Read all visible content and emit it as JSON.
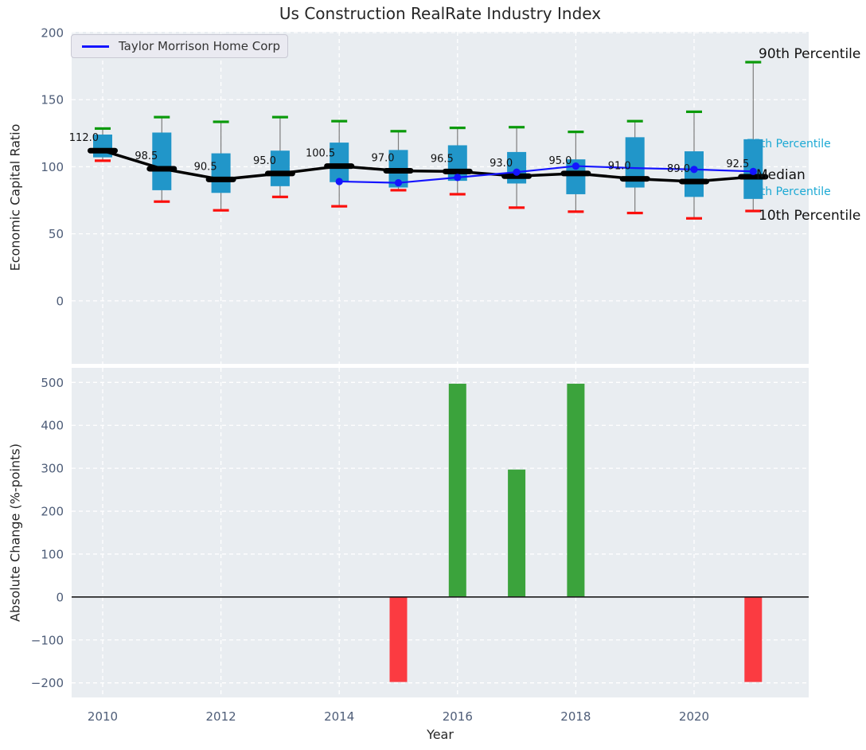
{
  "title": "Us Construction RealRate Industry Index",
  "colors": {
    "plot_background": "#e9edf1",
    "grid": "#ffffff",
    "box_fill": "#2196c9",
    "whisker": "#7d7d7d",
    "cap_90th": "#0a9a0a",
    "cap_10th": "#fb0f0c",
    "median": "#000000",
    "company_line": "#1414ff",
    "bar_positive": "#3ba33c",
    "bar_negative": "#fb3b41",
    "tick_label": "#4e5d78",
    "annotation_cyan": "#1ca9d4",
    "annotation_dark": "#111111",
    "zero_line": "#1a1a1a"
  },
  "top_chart": {
    "ylabel": "Economic Capital Ratio",
    "legend": {
      "label": "Taylor Morrison Home Corp"
    }
  },
  "bottom_chart": {
    "ylabel": "Absolute Change (%-points)",
    "xlabel": "Year"
  },
  "chart_data": [
    {
      "type": "boxplot",
      "title": "Us Construction RealRate Industry Index",
      "ylabel": "Economic Capital Ratio",
      "years": [
        2010,
        2011,
        2012,
        2013,
        2014,
        2015,
        2016,
        2017,
        2018,
        2019,
        2020,
        2021
      ],
      "percentiles": {
        "p10": [
          104.5,
          74.0,
          67.5,
          77.5,
          70.5,
          82.5,
          79.5,
          69.5,
          66.5,
          65.5,
          61.5,
          67.0
        ],
        "p25": [
          107.0,
          82.5,
          80.5,
          85.5,
          88.5,
          84.5,
          89.5,
          87.5,
          79.5,
          84.5,
          77.5,
          76.0
        ],
        "median": [
          112.0,
          98.5,
          90.5,
          95.0,
          100.5,
          97.0,
          96.5,
          93.0,
          95.0,
          91.0,
          89.0,
          92.5
        ],
        "p75": [
          124.0,
          125.5,
          110.0,
          112.0,
          118.0,
          112.5,
          116.0,
          111.0,
          105.5,
          122.0,
          111.5,
          120.5
        ],
        "p90": [
          128.5,
          137.0,
          133.5,
          137.0,
          134.0,
          126.5,
          129.0,
          129.5,
          126.0,
          134.0,
          141.0,
          178.0
        ]
      },
      "median_labels": [
        "112.0",
        "98.5",
        "90.5",
        "95.0",
        "100.5",
        "97.0",
        "96.5",
        "93.0",
        "95.0",
        "91.0",
        "89.0",
        "92.5"
      ],
      "company_line": {
        "name": "Taylor Morrison Home Corp",
        "years": [
          2014,
          2015,
          2016,
          2017,
          2018,
          2019,
          2020,
          2021
        ],
        "values": [
          89.0,
          88.0,
          92.0,
          96.0,
          100.5,
          99.0,
          98.0,
          96.5
        ],
        "marker_years": [
          2014,
          2015,
          2016,
          2017,
          2018,
          2020,
          2021
        ]
      },
      "annotations": [
        {
          "text": "90th Percentile",
          "style": "dark"
        },
        {
          "text": "75th Percentile",
          "style": "cyan"
        },
        {
          "text": "Median",
          "style": "dark"
        },
        {
          "text": "25th Percentile",
          "style": "cyan"
        },
        {
          "text": "10th Percentile",
          "style": "dark"
        }
      ],
      "yticks": [
        200,
        150,
        100,
        50,
        0
      ],
      "ylim": [
        -47,
        200.6
      ],
      "grid": true,
      "legend_position": "upper left"
    },
    {
      "type": "bar",
      "ylabel": "Absolute Change (%-points)",
      "xlabel": "Year",
      "x": [
        2015,
        2016,
        2017,
        2018,
        2021
      ],
      "values": [
        -198,
        497,
        297,
        497,
        -198
      ],
      "bar_colors": [
        "negative",
        "positive",
        "positive",
        "positive",
        "negative"
      ],
      "yticks": [
        500,
        400,
        300,
        200,
        100,
        0,
        -100,
        -200
      ],
      "xticks": [
        2010,
        2012,
        2014,
        2016,
        2018,
        2020
      ],
      "ylim": [
        -234,
        534
      ],
      "xlim": [
        2009.47,
        2021.93
      ],
      "grid": true
    }
  ]
}
